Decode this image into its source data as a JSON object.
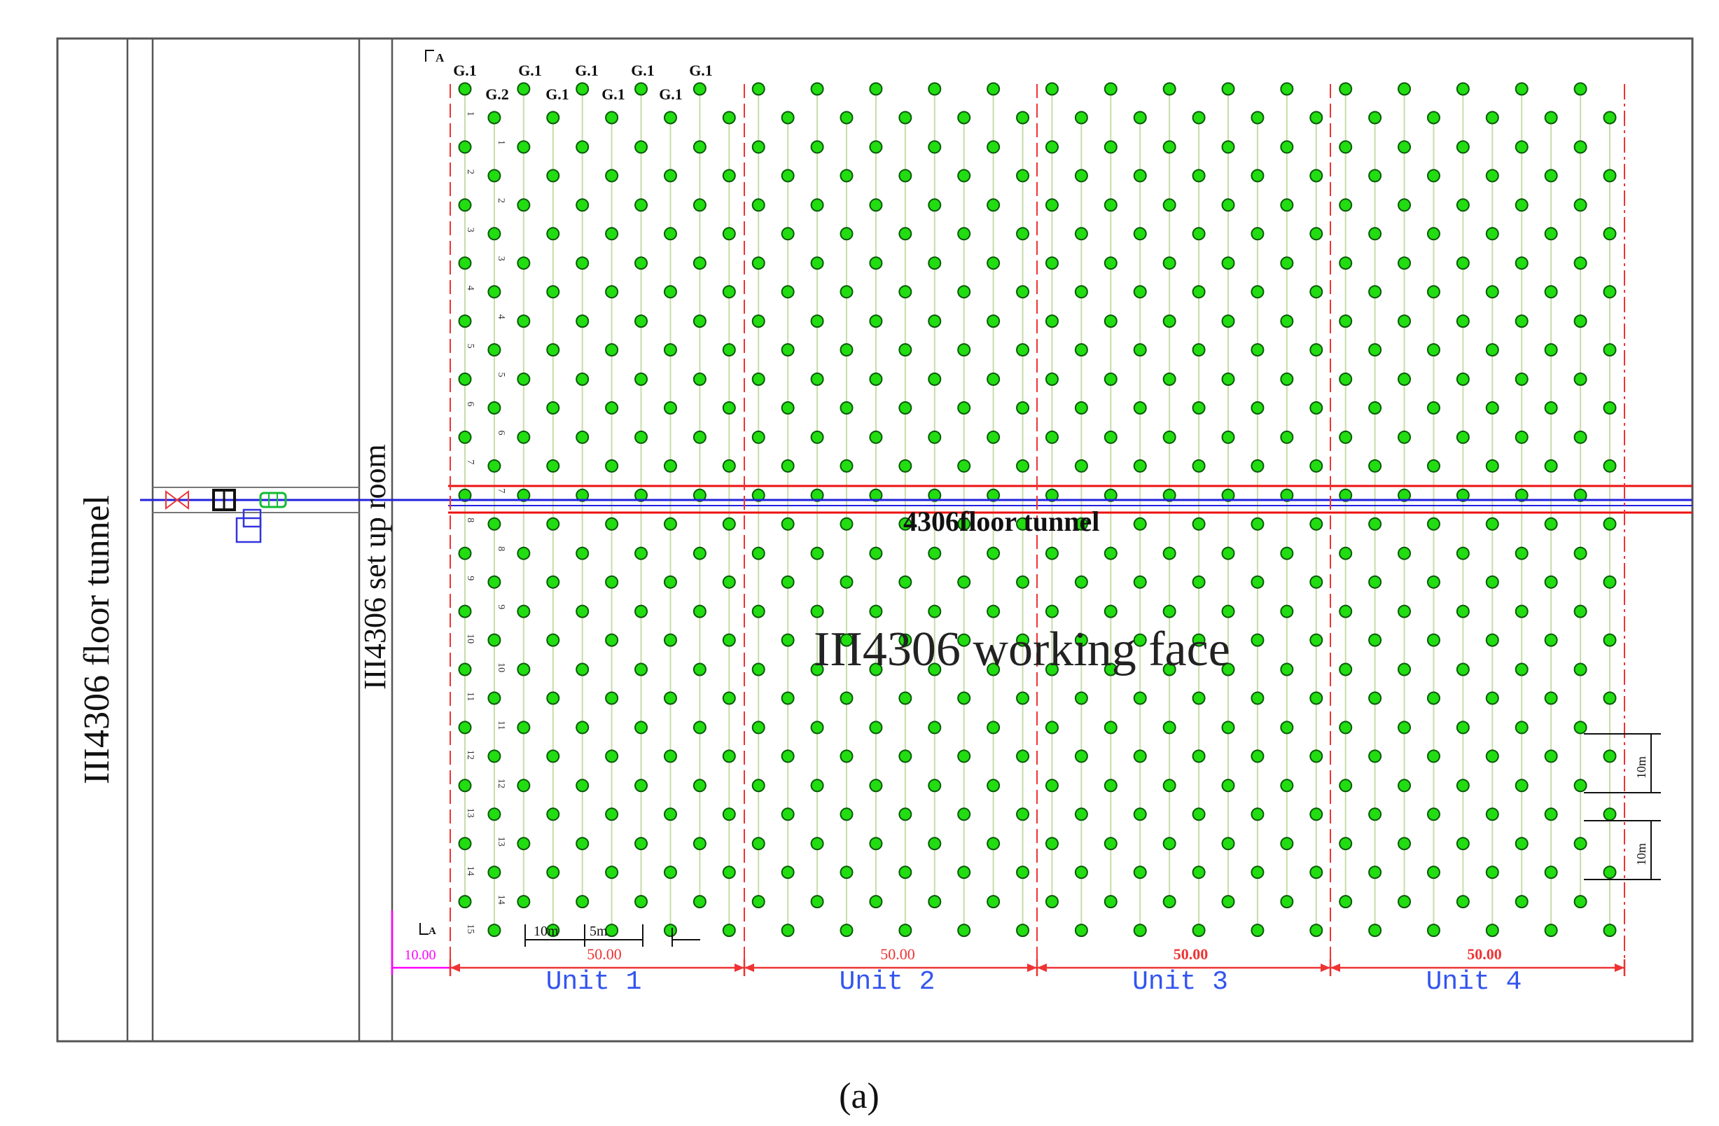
{
  "labels": {
    "left_tunnel": "III4306 floor tunnel",
    "setup_room": "III4306 set up room",
    "floor_tunnel": "4306floor tunnel",
    "working_face": "III4306 working face",
    "caption": "(a)",
    "section_mark_top": "A",
    "section_mark_bottom": "A"
  },
  "column_labels_top": [
    "G.1",
    "G.1",
    "G.1",
    "G.1",
    "G.1"
  ],
  "column_labels_second": [
    "G.2",
    "G.1",
    "G.1",
    "G.1"
  ],
  "row_numbers_a": [
    "1",
    "2",
    "3",
    "4",
    "5",
    "6",
    "7",
    "8",
    "9",
    "10",
    "11",
    "12",
    "13",
    "14",
    "15"
  ],
  "row_numbers_b": [
    "1",
    "2",
    "3",
    "4",
    "5",
    "6",
    "7",
    "8",
    "9",
    "10",
    "11",
    "12",
    "13",
    "14"
  ],
  "units": [
    {
      "label": "Unit 1",
      "dimension": "50.00"
    },
    {
      "label": "Unit 2",
      "dimension": "50.00"
    },
    {
      "label": "Unit 3",
      "dimension": "50.00"
    },
    {
      "label": "Unit 4",
      "dimension": "50.00"
    }
  ],
  "dimensions": {
    "offset": "10.00",
    "spacing_a": "10m",
    "spacing_b": "5m",
    "row_spacing_1": "10m",
    "row_spacing_2": "10m"
  },
  "colors": {
    "point_fill": "#22dd11",
    "point_stroke": "#0a5a0a",
    "column_line": "#c8dca8",
    "unit_divider": "#ee3333",
    "tunnel_red": "#ee1111",
    "tunnel_blue": "#2222dd",
    "unit_label": "#3355ee",
    "offset_dim": "#ff00ff",
    "frame": "#555555"
  },
  "grid": {
    "columns": 40,
    "high_rows": 15,
    "low_rows": 15,
    "row_spacing_m": 10,
    "column_spacing_m": 5
  }
}
